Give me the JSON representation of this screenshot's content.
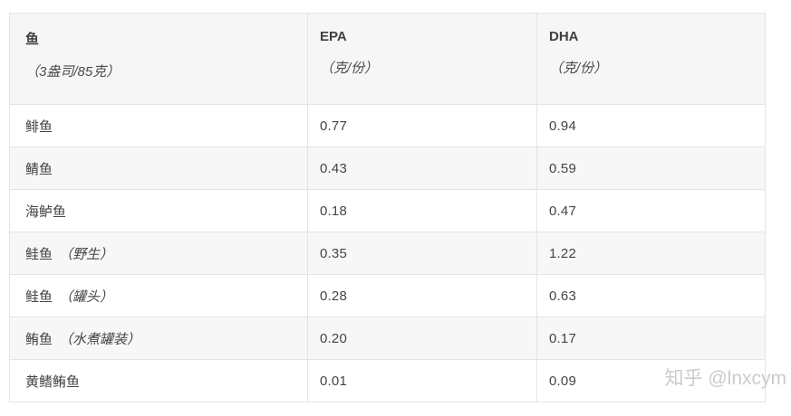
{
  "chart_data": {
    "type": "table",
    "title": "",
    "columns": [
      {
        "title": "鱼",
        "unit": "（3盎司/85克）"
      },
      {
        "title": "EPA",
        "unit": "（克/份）"
      },
      {
        "title": "DHA",
        "unit": "（克/份）"
      }
    ],
    "rows": [
      {
        "fish": "鲱鱼",
        "note": "",
        "epa": "0.77",
        "dha": "0.94"
      },
      {
        "fish": "鲭鱼",
        "note": "",
        "epa": "0.43",
        "dha": "0.59"
      },
      {
        "fish": "海鲈鱼",
        "note": "",
        "epa": "0.18",
        "dha": "0.47"
      },
      {
        "fish": "鲑鱼",
        "note": "（野生）",
        "epa": "0.35",
        "dha": "1.22"
      },
      {
        "fish": "鲑鱼",
        "note": "（罐头）",
        "epa": "0.28",
        "dha": "0.63"
      },
      {
        "fish": "鲔鱼",
        "note": "（水煮罐装）",
        "epa": "0.20",
        "dha": "0.17"
      },
      {
        "fish": "黄鳍鲔鱼",
        "note": "",
        "epa": "0.01",
        "dha": "0.09"
      }
    ]
  },
  "watermark": {
    "text": "知乎 @lnxcym"
  },
  "colors": {
    "header_bg": "#f6f6f7",
    "stripe_bg": "#f7f7f8",
    "border": "#e4e4e4",
    "text": "#444444",
    "watermark": "#cbcbcb"
  }
}
